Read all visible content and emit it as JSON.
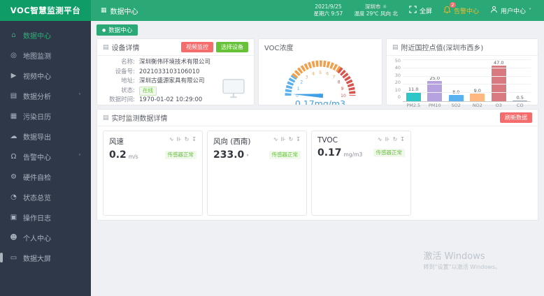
{
  "header": {
    "logo": "VOC智慧监测平台",
    "menu_item": "数据中心",
    "date": "2021/9/25",
    "time_line": "星期六 9:57",
    "weather_city": "深圳市 ☼",
    "weather_detail": "温度 29℃ 风向 北",
    "fullscreen_label": "全屏",
    "alert_center_label": "告警中心",
    "alert_badge": "2",
    "user_center_label": "用户中心"
  },
  "icons": {
    "dot": "●",
    "grid": "▦",
    "panel": "▤",
    "chevron": "˅",
    "home": "⌂",
    "map": "◎",
    "video": "▶",
    "analysis": "▤",
    "calendar": "▦",
    "export": "☁",
    "bell": "Ω",
    "hardware": "⚙",
    "status": "◔",
    "log": "▣",
    "user": "☻",
    "screen": "▭",
    "trend": "∿",
    "bars": "⊪",
    "refresh": "↻",
    "download": "↧"
  },
  "sidebar": {
    "items": [
      {
        "label": "数据中心",
        "icon": "home",
        "active": true
      },
      {
        "label": "地图监测",
        "icon": "map"
      },
      {
        "label": "视频中心",
        "icon": "video"
      },
      {
        "label": "数据分析",
        "icon": "analysis",
        "expandable": true
      },
      {
        "label": "污染日历",
        "icon": "calendar"
      },
      {
        "label": "数据导出",
        "icon": "export"
      },
      {
        "label": "告警中心",
        "icon": "bell",
        "expandable": true
      },
      {
        "label": "硬件自检",
        "icon": "hardware"
      },
      {
        "label": "状态总览",
        "icon": "status"
      },
      {
        "label": "操作日志",
        "icon": "log"
      },
      {
        "label": "个人中心",
        "icon": "user"
      },
      {
        "label": "数据大屏",
        "icon": "screen"
      }
    ]
  },
  "tabbar": {
    "active_tab": "数据中心"
  },
  "device_panel": {
    "title": "设备详情",
    "video_button": "视频监控",
    "select_button": "选择设备",
    "fields": [
      {
        "label": "名称:",
        "value": "深圳衡伟环境技术有限公司"
      },
      {
        "label": "设备号:",
        "value": "2021033103106010"
      },
      {
        "label": "地址:",
        "value": "深圳古盛源家具有限公司"
      },
      {
        "label": "状态:",
        "value": "在线",
        "badge": true
      },
      {
        "label": "数据时间:",
        "value": "1970-01-02 10:29:00"
      }
    ]
  },
  "gauge_panel": {
    "title": "VOC浓度",
    "value": "0.17mg/m3",
    "value_num": 0.17,
    "max": 10,
    "needle_color": "#3f9fe8",
    "segments": [
      {
        "from": 0,
        "to": 2,
        "color": "#5ab1ef"
      },
      {
        "from": 2,
        "to": 7,
        "color": "#f0a04a"
      },
      {
        "from": 7,
        "to": 10,
        "color": "#d9544f"
      }
    ]
  },
  "chart_panel": {
    "title": "附近国控点值(深圳市西乡)"
  },
  "chart_data": {
    "type": "bar",
    "title": "附近国控点值(深圳市西乡)",
    "categories": [
      "PM2.5",
      "PM10",
      "SO2",
      "NO2",
      "O3",
      "CO"
    ],
    "values": [
      11.0,
      25.0,
      8.0,
      9.0,
      47.0,
      0.5
    ],
    "colors": [
      "#2ec7c9",
      "#b6a2de",
      "#5ab1ef",
      "#ffb980",
      "#d87a80",
      "#9aa4b5"
    ],
    "xlabel": "",
    "ylabel": "",
    "ylim": [
      0,
      50
    ],
    "yticks": [
      0,
      10,
      20,
      30,
      40,
      50
    ],
    "grid": true,
    "legend": false
  },
  "realtime_panel": {
    "title": "实时监测数据详情",
    "refresh_button": "刷新数据",
    "cards": [
      {
        "name": "风速",
        "value": "0.2",
        "unit": "m/s",
        "status": "传感器正常"
      },
      {
        "name": "风向 (西南)",
        "value": "233.0",
        "unit": "°",
        "status": "传感器正常"
      },
      {
        "name": "TVOC",
        "value": "0.17",
        "unit": "mg/m3",
        "status": "传感器正常"
      }
    ]
  },
  "watermark": {
    "line1": "激活 Windows",
    "line2": "转到“设置”以激活 Windows。"
  }
}
